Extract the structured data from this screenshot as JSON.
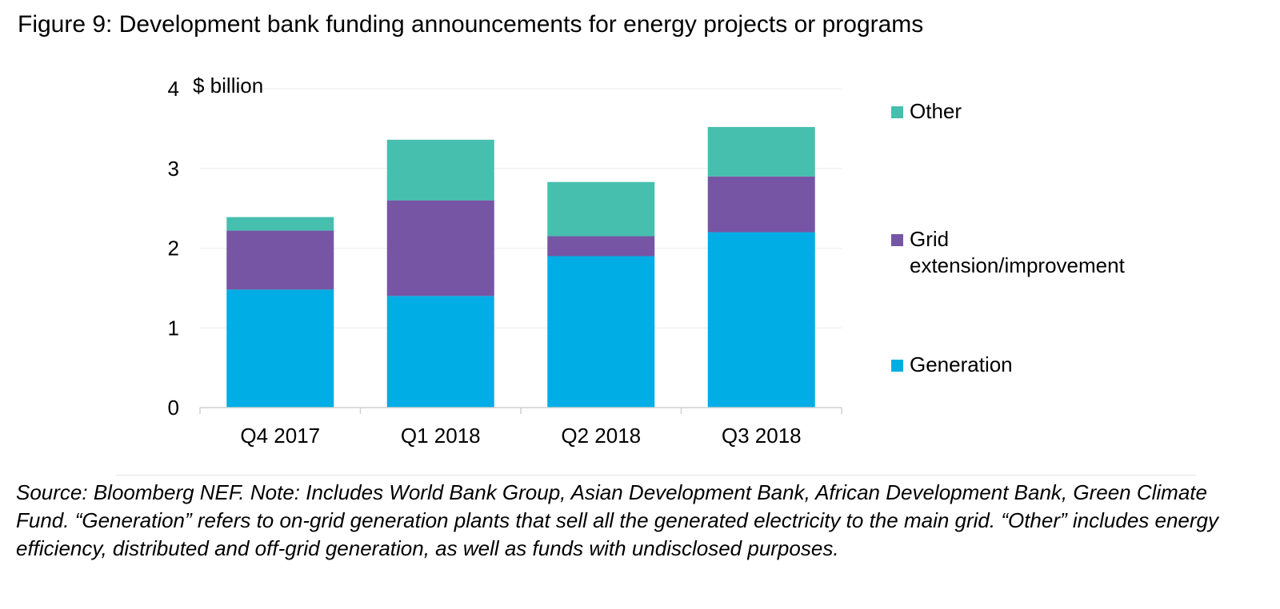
{
  "figure": {
    "title": "Figure 9: Development bank funding announcements for energy projects or programs",
    "source_note": "Source: Bloomberg NEF. Note: Includes World Bank Group, Asian Development Bank, African Development Bank, Green Climate Fund. “Generation” refers to on-grid generation plants that sell all the generated electricity to the main grid. “Other” includes energy efficiency, distributed and off-grid generation, as well as funds with undisclosed purposes."
  },
  "chart_data": {
    "type": "bar",
    "stacked": true,
    "title": "",
    "xlabel": "",
    "ylabel": "$ billion",
    "categories": [
      "Q4 2017",
      "Q1 2018",
      "Q2 2018",
      "Q3 2018"
    ],
    "series": [
      {
        "name": "Generation",
        "color": "#00ADE4",
        "values": [
          1.48,
          1.4,
          1.9,
          2.2
        ]
      },
      {
        "name": "Grid extension/improvement",
        "color": "#7655A5",
        "values": [
          0.74,
          1.2,
          0.25,
          0.7
        ]
      },
      {
        "name": "Other",
        "color": "#46BFAE",
        "values": [
          0.17,
          0.76,
          0.68,
          0.62
        ]
      }
    ],
    "ylim": [
      0,
      4
    ],
    "yticks": [
      "0",
      "1",
      "2",
      "3",
      "4"
    ],
    "grid": true,
    "legend": {
      "position": "right",
      "entries": [
        {
          "lines": [
            "Other"
          ],
          "color": "#46BFAE"
        },
        {
          "lines": [
            "Grid",
            "extension/improvement"
          ],
          "color": "#7655A5"
        },
        {
          "lines": [
            "Generation"
          ],
          "color": "#00ADE4"
        }
      ]
    }
  }
}
